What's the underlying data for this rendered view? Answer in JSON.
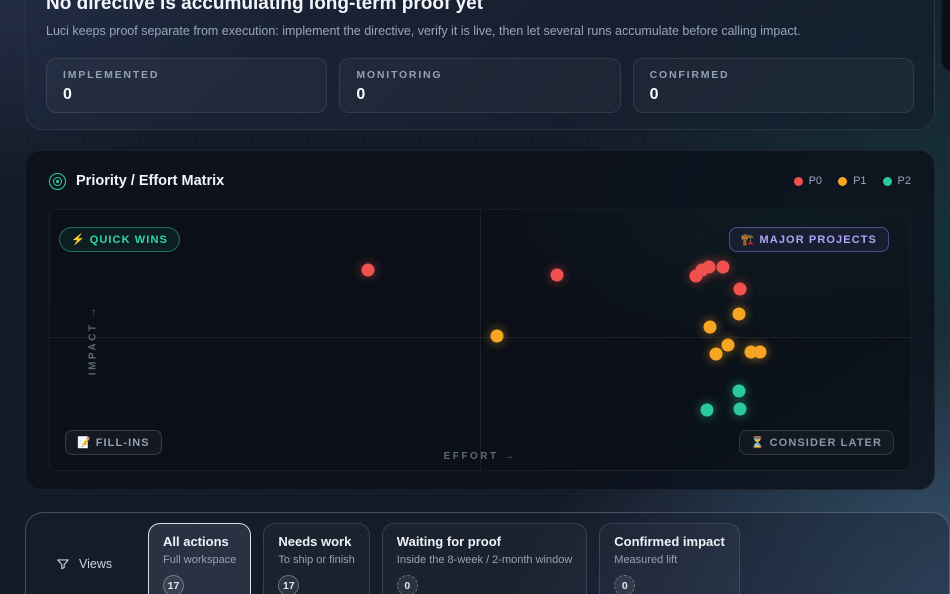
{
  "header": {
    "title": "No directive is accumulating long-term proof yet",
    "subtitle": "Luci keeps proof separate from execution: implement the directive, verify it is live, then let several runs accumulate before calling impact.",
    "stats": [
      {
        "label": "IMPLEMENTED",
        "value": "0"
      },
      {
        "label": "MONITORING",
        "value": "0"
      },
      {
        "label": "CONFIRMED",
        "value": "0"
      }
    ]
  },
  "matrix": {
    "title": "Priority / Effort Matrix",
    "icon": "target-icon",
    "legend": [
      {
        "label": "P0",
        "color": "#f0514f"
      },
      {
        "label": "P1",
        "color": "#f6a623"
      },
      {
        "label": "P2",
        "color": "#2cc89f"
      }
    ],
    "quadrants": {
      "quick_wins": {
        "icon": "⚡",
        "label": "QUICK WINS"
      },
      "major_projects": {
        "icon": "🏗️",
        "label": "MAJOR PROJECTS"
      },
      "fill_ins": {
        "icon": "📝",
        "label": "FILL-INS"
      },
      "consider_later": {
        "icon": "⏳",
        "label": "CONSIDER LATER"
      }
    },
    "axes": {
      "x": "EFFORT →",
      "y": "IMPACT →"
    }
  },
  "chart_data": {
    "type": "scatter",
    "title": "Priority / Effort Matrix",
    "xlabel": "Effort",
    "ylabel": "Impact",
    "xlim": [
      0,
      100
    ],
    "ylim": [
      0,
      100
    ],
    "grid": "quadrant-midlines",
    "legend_position": "top-right",
    "quadrant_labels": [
      "QUICK WINS",
      "MAJOR PROJECTS",
      "FILL-INS",
      "CONSIDER LATER"
    ],
    "series": [
      {
        "name": "P0",
        "color": "#f0514f",
        "points": [
          [
            37,
            77
          ],
          [
            59,
            75
          ],
          [
            75.1,
            74.8
          ],
          [
            75.8,
            77.1
          ],
          [
            76.6,
            77.9
          ],
          [
            78.2,
            78.2
          ],
          [
            80.2,
            69.5
          ]
        ]
      },
      {
        "name": "P1",
        "color": "#f6a623",
        "points": [
          [
            52,
            51.5
          ],
          [
            80.1,
            59.9
          ],
          [
            76.7,
            55
          ],
          [
            78.8,
            48.1
          ],
          [
            77.4,
            44.7
          ],
          [
            81.5,
            45.4
          ],
          [
            82.6,
            45.3
          ]
        ]
      },
      {
        "name": "P2",
        "color": "#2cc89f",
        "points": [
          [
            80.1,
            30.2
          ],
          [
            76.4,
            22.9
          ],
          [
            80.2,
            23.3
          ]
        ]
      }
    ]
  },
  "views": {
    "label": "Views",
    "tabs": [
      {
        "title": "All actions",
        "subtitle": "Full workspace",
        "count": "17",
        "selected": true,
        "badge_style": "solid"
      },
      {
        "title": "Needs work",
        "subtitle": "To ship or finish",
        "count": "17",
        "selected": false,
        "badge_style": "solid"
      },
      {
        "title": "Waiting for proof",
        "subtitle": "Inside the 8-week / 2-month window",
        "count": "0",
        "selected": false,
        "badge_style": "dashed"
      },
      {
        "title": "Confirmed impact",
        "subtitle": "Measured lift",
        "count": "0",
        "selected": false,
        "badge_style": "dashed"
      }
    ]
  }
}
